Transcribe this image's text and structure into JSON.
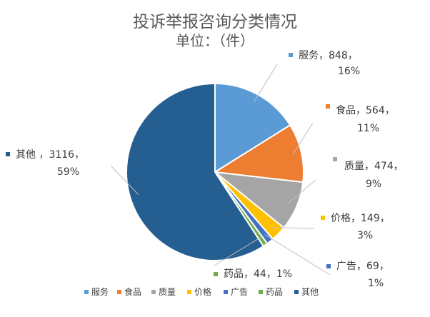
{
  "chart_data": {
    "type": "pie",
    "title": "投诉举报咨询分类情况",
    "subtitle": "单位：（件）",
    "slices": [
      {
        "name": "服务",
        "value": 848,
        "percent": "16%",
        "color": "#5B9BD5"
      },
      {
        "name": "食品",
        "value": 564,
        "percent": "11%",
        "color": "#ED7D31"
      },
      {
        "name": "质量",
        "value": 474,
        "percent": "9%",
        "color": "#A5A5A5"
      },
      {
        "name": "价格",
        "value": 149,
        "percent": "3%",
        "color": "#FFC000"
      },
      {
        "name": "广告",
        "value": 69,
        "percent": "1%",
        "color": "#4472C4"
      },
      {
        "name": "药品",
        "value": 44,
        "percent": "1%",
        "color": "#70AD47"
      },
      {
        "name": "其他",
        "value": 3116,
        "percent": "59%",
        "color": "#255E91"
      }
    ],
    "data_labels": [
      {
        "line1": "服务，848，",
        "line2": "16%"
      },
      {
        "line1": "食品，564，",
        "line2": "11%"
      },
      {
        "line1": "质量，474，",
        "line2": "9%"
      },
      {
        "line1": "价格，149，",
        "line2": "3%"
      },
      {
        "line1": "广告，69，",
        "line2": "1%"
      },
      {
        "line1": "药品，44，1%",
        "line2": ""
      },
      {
        "line1": "其他 ，3116，",
        "line2": "59%"
      }
    ],
    "legend": {
      "position": "bottom",
      "items": [
        "服务",
        "食品",
        "质量",
        "价格",
        "广告",
        "药品",
        "其他"
      ]
    }
  }
}
